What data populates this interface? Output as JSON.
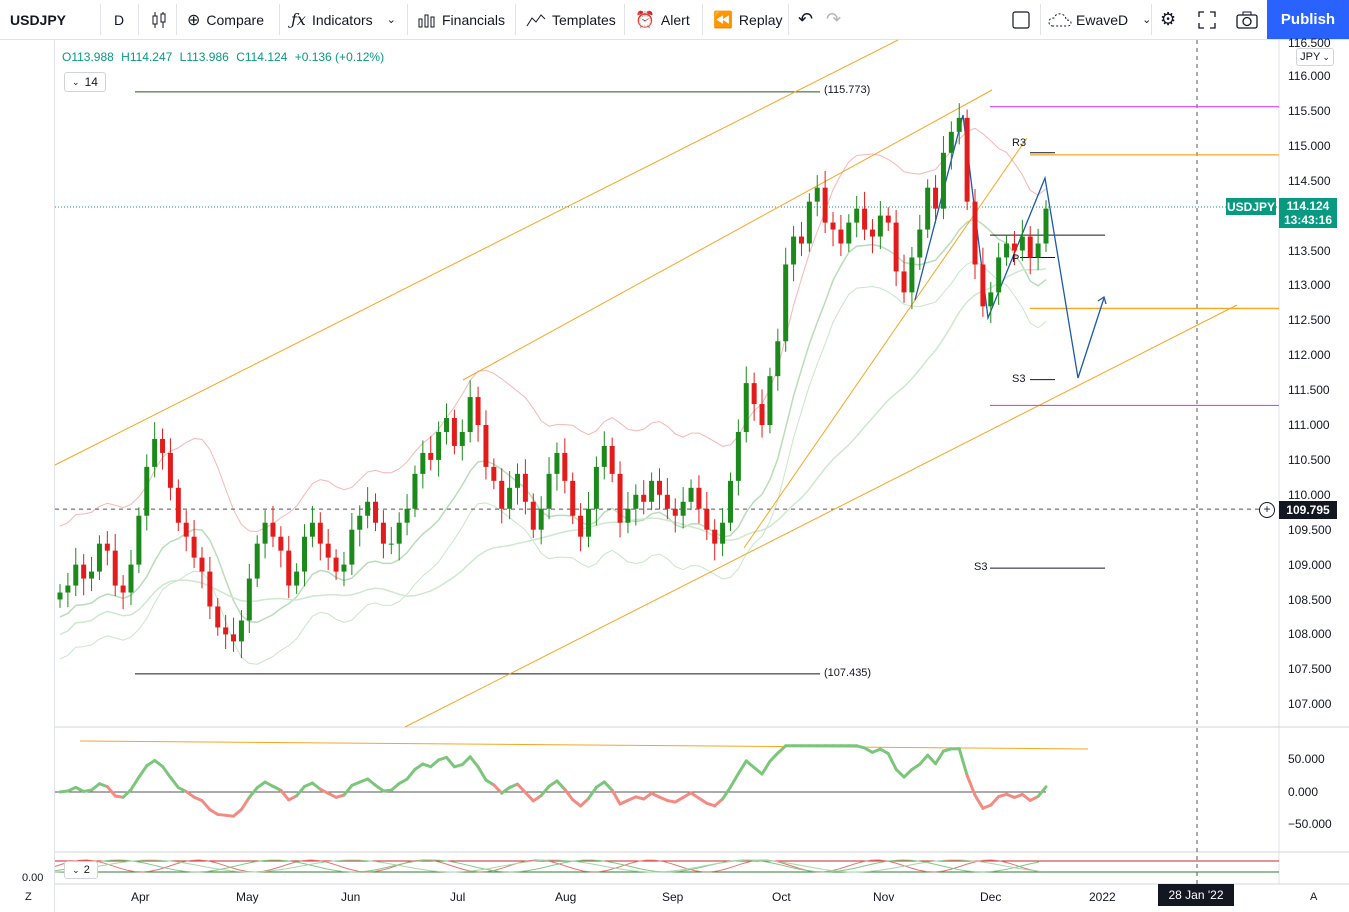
{
  "toolbar": {
    "symbol": "USDJPY",
    "interval": "D",
    "compare": "Compare",
    "indicators": "Indicators",
    "financials": "Financials",
    "templates": "Templates",
    "alert": "Alert",
    "replay": "Replay",
    "layout_name": "EwaveD",
    "publish": "Publish",
    "icons": [
      "candles-icon",
      "plus-circle-icon",
      "fx-icon",
      "bar-chart-icon",
      "templates-icon",
      "alarm-icon",
      "replay-icon",
      "undo-icon",
      "redo-icon",
      "square-icon",
      "cloud-icon",
      "gear-icon",
      "fullscreen-icon",
      "camera-icon"
    ]
  },
  "legend": {
    "open": "O113.988",
    "high": "H114.247",
    "low": "L113.986",
    "close": "C114.124",
    "change": "+0.136 (+0.12%)",
    "collapsed_count": "14",
    "indicator2_count": "2"
  },
  "price_axis": {
    "currency": "JPY",
    "ticks": [
      "116.500",
      "116.000",
      "115.500",
      "115.000",
      "114.500",
      "114.000",
      "113.500",
      "113.000",
      "112.500",
      "112.000",
      "111.500",
      "111.000",
      "110.500",
      "110.000",
      "109.500",
      "109.000",
      "108.500",
      "108.000",
      "107.500",
      "107.000"
    ],
    "last_price": "114.124",
    "countdown": "13:43:16",
    "symbol_tag": "USDJPY",
    "crosshair_price": "109.795"
  },
  "osc_axis": {
    "ticks": [
      "50.000",
      "0.000",
      "−50.000"
    ],
    "bottom_value": "0.00"
  },
  "time_axis": {
    "labels": [
      "Apr",
      "May",
      "Jun",
      "Jul",
      "Aug",
      "Sep",
      "Oct",
      "Nov",
      "Dec",
      "2022"
    ],
    "crosshair_date": "28 Jan '22"
  },
  "annotations": {
    "high_label": "(115.773)",
    "low_label": "(107.435)",
    "r3": "R3",
    "s3a": "S3",
    "s3b": "S3",
    "p": "P"
  },
  "corner": {
    "left": "Z",
    "right": "A"
  },
  "colors": {
    "up": "#1b8a1b",
    "down": "#e31b1b",
    "channel": "#f5a623",
    "forecast": "#1e5aa8",
    "magenta": "#e040fb",
    "accent": "#2962ff"
  },
  "chart_data": {
    "type": "candlestick",
    "symbol": "USDJPY",
    "interval": "D",
    "ylim": [
      106.6,
      116.6
    ],
    "last": {
      "open": 113.988,
      "high": 114.247,
      "low": 113.986,
      "close": 114.124
    },
    "months": [
      "Apr",
      "May",
      "Jun",
      "Jul",
      "Aug",
      "Sep",
      "Oct",
      "Nov",
      "Dec"
    ],
    "closes": [
      108.6,
      108.7,
      109.0,
      108.8,
      108.9,
      109.3,
      109.2,
      108.7,
      108.6,
      109.0,
      109.7,
      110.4,
      110.8,
      110.6,
      110.1,
      109.6,
      109.4,
      109.1,
      108.9,
      108.4,
      108.1,
      108.0,
      107.9,
      108.2,
      108.8,
      109.3,
      109.6,
      109.4,
      109.2,
      108.7,
      108.9,
      109.4,
      109.6,
      109.3,
      109.1,
      108.9,
      109.0,
      109.5,
      109.7,
      109.9,
      109.6,
      109.3,
      109.3,
      109.6,
      109.8,
      110.3,
      110.6,
      110.5,
      110.9,
      111.1,
      110.7,
      110.9,
      111.4,
      111.0,
      110.4,
      110.2,
      109.8,
      110.1,
      110.3,
      109.9,
      109.5,
      109.8,
      110.3,
      110.6,
      110.2,
      109.7,
      109.4,
      109.8,
      110.4,
      110.7,
      110.3,
      109.6,
      109.8,
      110.0,
      109.9,
      110.2,
      110.0,
      109.8,
      109.7,
      109.9,
      110.1,
      109.8,
      109.5,
      109.3,
      109.6,
      110.2,
      110.9,
      111.6,
      111.3,
      111.0,
      111.7,
      112.2,
      113.3,
      113.7,
      113.6,
      114.2,
      114.4,
      113.9,
      113.8,
      113.6,
      113.9,
      114.1,
      113.8,
      113.7,
      114.0,
      113.9,
      113.2,
      112.9,
      113.4,
      113.8,
      114.4,
      114.1,
      114.9,
      115.2,
      115.4,
      114.2,
      113.3,
      112.7,
      112.9,
      113.4,
      113.6,
      113.5,
      113.7,
      113.4,
      113.6,
      114.1
    ],
    "levels": {
      "high_line": 115.773,
      "low_line": 107.435,
      "last_price": 114.124,
      "crosshair": 109.795,
      "R3": 114.9,
      "S3_upper": 111.65,
      "S3_lower": 108.95,
      "pivot": 113.4
    },
    "oscillator": {
      "ticks": [
        50,
        0,
        -50
      ],
      "zero": 0
    }
  }
}
